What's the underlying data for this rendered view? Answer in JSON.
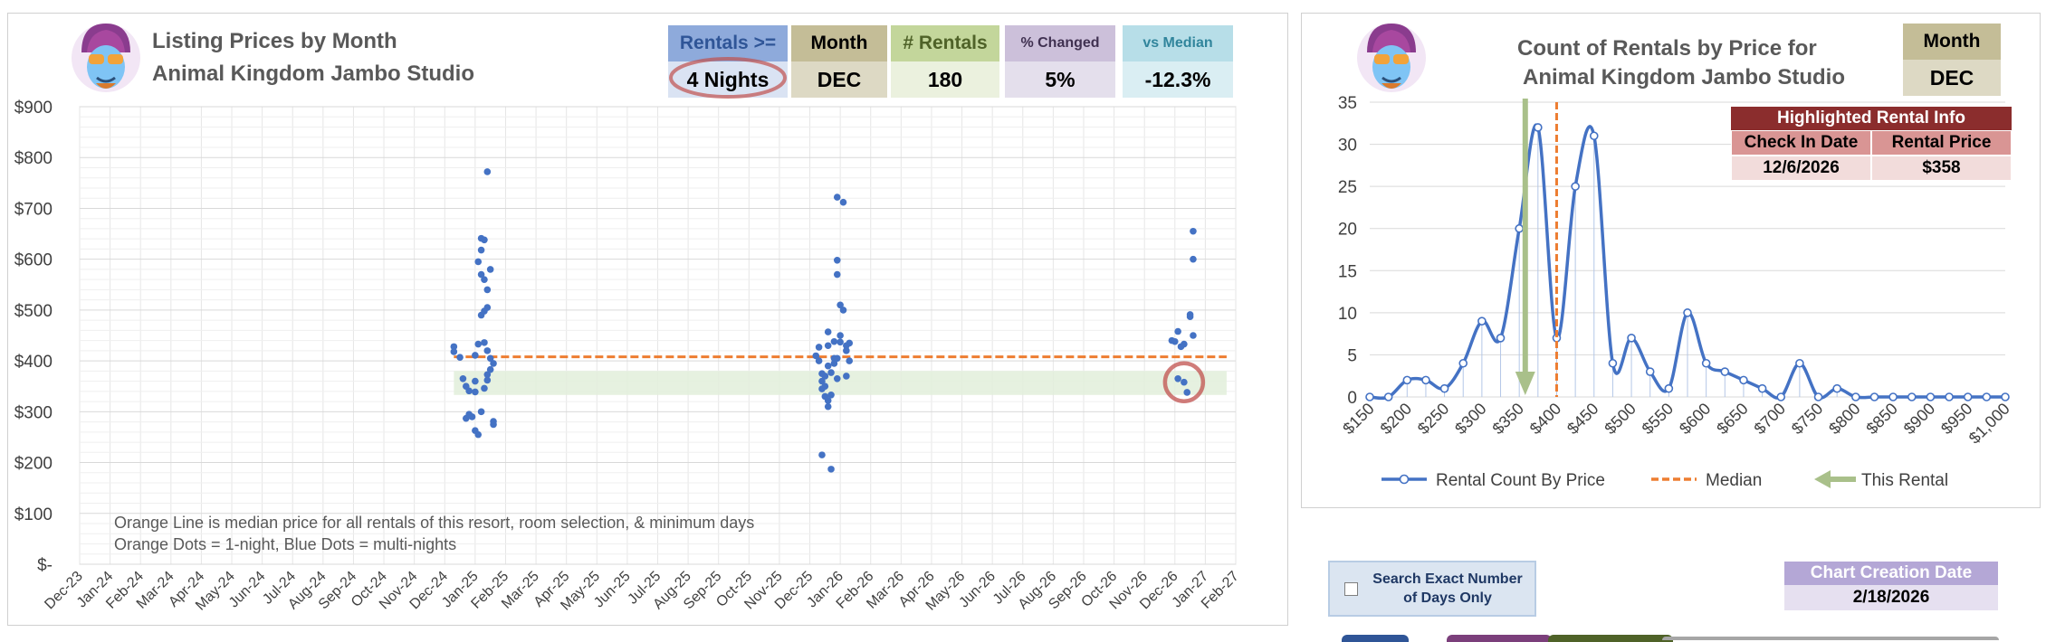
{
  "left": {
    "title_line1": "Listing Prices by Month",
    "title_line2": "Animal Kingdom Jambo Studio",
    "kpis": [
      {
        "label": "Rentals >=",
        "value": "4 Nights",
        "label_bg": "#8eaadb",
        "value_bg": "#dae3f3",
        "label_color": "#2f5597"
      },
      {
        "label": "Month",
        "value": "DEC",
        "label_bg": "#c4bd97",
        "value_bg": "#ddd9c4",
        "label_color": "#000000"
      },
      {
        "label": "# Rentals",
        "value": "180",
        "label_bg": "#c3d69b",
        "value_bg": "#ebf1de",
        "label_color": "#4f6228"
      },
      {
        "label": "% Changed",
        "value": "5%",
        "label_bg": "#ccc0da",
        "value_bg": "#e4dfec",
        "label_color": "#403151"
      },
      {
        "label": "vs Median",
        "value": "-12.3%",
        "label_bg": "#b7dee8",
        "value_bg": "#daeef3",
        "label_color": "#31859c"
      }
    ],
    "notes": [
      "Orange Line is median price for all rentals of this resort, room selection, & minimum days",
      "Orange Dots = 1-night, Blue Dots = multi-nights"
    ]
  },
  "right": {
    "title_line1": "Count of Rentals by Price for",
    "title_line2": "Animal Kingdom Jambo Studio",
    "month_label": "Month",
    "month_value": "DEC",
    "highlight": {
      "header": "Highlighted Rental Info",
      "col1": "Check In Date",
      "col2": "Rental Price",
      "checkin": "12/6/2026",
      "price": "$358"
    },
    "legend": {
      "series": "Rental Count By Price",
      "median": "Median",
      "this_rental": "This Rental"
    }
  },
  "controls": {
    "exact_days_label_1": "Search Exact Number",
    "exact_days_label_2": "of Days Only",
    "chart_date_label": "Chart Creation Date",
    "chart_date_value": "2/18/2026"
  },
  "colors": {
    "blue": "#4472c4",
    "orange": "#ed7d31",
    "band": "#e2efda",
    "green_arrow": "#a9c08a",
    "circle": "#c0504d"
  },
  "chart_data": [
    {
      "type": "scatter",
      "title": "Listing Prices by Month",
      "ylim": [
        0,
        900
      ],
      "y_ticks": [
        0,
        100,
        200,
        300,
        400,
        500,
        600,
        700,
        800,
        900
      ],
      "y_tick_labels": [
        "$-",
        "$100",
        "$200",
        "$300",
        "$400",
        "$500",
        "$600",
        "$700",
        "$800",
        "$900"
      ],
      "x_tick_labels": [
        "Dec-23",
        "Jan-24",
        "Feb-24",
        "Mar-24",
        "Apr-24",
        "May-24",
        "Jun-24",
        "Jul-24",
        "Aug-24",
        "Sep-24",
        "Oct-24",
        "Nov-24",
        "Dec-24",
        "Jan-25",
        "Feb-25",
        "Mar-25",
        "Apr-25",
        "May-25",
        "Jun-25",
        "Jul-25",
        "Aug-25",
        "Sep-25",
        "Oct-25",
        "Nov-25",
        "Dec-25",
        "Jan-26",
        "Feb-26",
        "Mar-26",
        "Apr-26",
        "May-26",
        "Jun-26",
        "Jul-26",
        "Aug-26",
        "Sep-26",
        "Oct-26",
        "Nov-26",
        "Dec-26",
        "Jan-27",
        "Feb-27"
      ],
      "median": 408,
      "median_x_range": [
        12.3,
        37.7
      ],
      "band": [
        333,
        380
      ],
      "band_x_range": [
        12.3,
        37.7
      ],
      "highlight_point": {
        "x": 36.3,
        "y": 358
      },
      "points": [
        {
          "x": 12.3,
          "y": 428
        },
        {
          "x": 12.3,
          "y": 418
        },
        {
          "x": 12.5,
          "y": 407
        },
        {
          "x": 12.6,
          "y": 365
        },
        {
          "x": 12.7,
          "y": 350
        },
        {
          "x": 12.7,
          "y": 287
        },
        {
          "x": 12.8,
          "y": 295
        },
        {
          "x": 12.8,
          "y": 341
        },
        {
          "x": 12.9,
          "y": 290
        },
        {
          "x": 13.0,
          "y": 263
        },
        {
          "x": 13.0,
          "y": 339
        },
        {
          "x": 13.0,
          "y": 360
        },
        {
          "x": 13.0,
          "y": 411
        },
        {
          "x": 13.1,
          "y": 433
        },
        {
          "x": 13.1,
          "y": 255
        },
        {
          "x": 13.1,
          "y": 595
        },
        {
          "x": 13.2,
          "y": 618
        },
        {
          "x": 13.2,
          "y": 641
        },
        {
          "x": 13.3,
          "y": 638
        },
        {
          "x": 13.2,
          "y": 570
        },
        {
          "x": 13.3,
          "y": 560
        },
        {
          "x": 13.2,
          "y": 490
        },
        {
          "x": 13.3,
          "y": 498
        },
        {
          "x": 13.4,
          "y": 505
        },
        {
          "x": 13.3,
          "y": 436
        },
        {
          "x": 13.4,
          "y": 420
        },
        {
          "x": 13.5,
          "y": 405
        },
        {
          "x": 13.4,
          "y": 373
        },
        {
          "x": 13.5,
          "y": 383
        },
        {
          "x": 13.4,
          "y": 362
        },
        {
          "x": 13.3,
          "y": 346
        },
        {
          "x": 13.2,
          "y": 300
        },
        {
          "x": 13.6,
          "y": 281
        },
        {
          "x": 13.6,
          "y": 275
        },
        {
          "x": 13.4,
          "y": 772
        },
        {
          "x": 13.5,
          "y": 580
        },
        {
          "x": 13.4,
          "y": 540
        },
        {
          "x": 13.6,
          "y": 395
        },
        {
          "x": 24.2,
          "y": 410
        },
        {
          "x": 24.3,
          "y": 427
        },
        {
          "x": 24.3,
          "y": 400
        },
        {
          "x": 24.4,
          "y": 360
        },
        {
          "x": 24.4,
          "y": 345
        },
        {
          "x": 24.4,
          "y": 215
        },
        {
          "x": 24.5,
          "y": 370
        },
        {
          "x": 24.5,
          "y": 350
        },
        {
          "x": 24.5,
          "y": 330
        },
        {
          "x": 24.6,
          "y": 322
        },
        {
          "x": 24.6,
          "y": 310
        },
        {
          "x": 24.6,
          "y": 430
        },
        {
          "x": 24.6,
          "y": 457
        },
        {
          "x": 24.7,
          "y": 377
        },
        {
          "x": 24.7,
          "y": 333
        },
        {
          "x": 24.7,
          "y": 187
        },
        {
          "x": 24.8,
          "y": 405
        },
        {
          "x": 24.8,
          "y": 438
        },
        {
          "x": 24.8,
          "y": 395
        },
        {
          "x": 24.9,
          "y": 365
        },
        {
          "x": 24.9,
          "y": 405
        },
        {
          "x": 24.9,
          "y": 722
        },
        {
          "x": 24.9,
          "y": 598
        },
        {
          "x": 24.9,
          "y": 570
        },
        {
          "x": 25.0,
          "y": 510
        },
        {
          "x": 25.0,
          "y": 450
        },
        {
          "x": 25.0,
          "y": 437
        },
        {
          "x": 25.1,
          "y": 712
        },
        {
          "x": 25.1,
          "y": 500
        },
        {
          "x": 25.2,
          "y": 430
        },
        {
          "x": 25.2,
          "y": 420
        },
        {
          "x": 25.2,
          "y": 370
        },
        {
          "x": 25.3,
          "y": 435
        },
        {
          "x": 25.3,
          "y": 400
        },
        {
          "x": 24.6,
          "y": 390
        },
        {
          "x": 24.4,
          "y": 375
        },
        {
          "x": 35.9,
          "y": 440
        },
        {
          "x": 36.0,
          "y": 438
        },
        {
          "x": 36.1,
          "y": 458
        },
        {
          "x": 36.1,
          "y": 365
        },
        {
          "x": 36.2,
          "y": 428
        },
        {
          "x": 36.3,
          "y": 433
        },
        {
          "x": 36.3,
          "y": 358
        },
        {
          "x": 36.4,
          "y": 338
        },
        {
          "x": 36.5,
          "y": 487
        },
        {
          "x": 36.5,
          "y": 491
        },
        {
          "x": 36.6,
          "y": 655
        },
        {
          "x": 36.6,
          "y": 600
        },
        {
          "x": 36.6,
          "y": 450
        }
      ]
    },
    {
      "type": "line",
      "title": "Count of Rentals by Price for Animal Kingdom Jambo Studio",
      "ylim": [
        0,
        35
      ],
      "y_ticks": [
        0,
        5,
        10,
        15,
        20,
        25,
        30,
        35
      ],
      "x_tick_labels": [
        "$150",
        "$200",
        "$250",
        "$300",
        "$350",
        "$400",
        "$450",
        "$500",
        "$550",
        "$600",
        "$650",
        "$700",
        "$750",
        "$800",
        "$850",
        "$900",
        "$950",
        "$1,000"
      ],
      "x": [
        150,
        175,
        200,
        225,
        250,
        275,
        300,
        325,
        350,
        375,
        400,
        425,
        450,
        475,
        500,
        525,
        550,
        575,
        600,
        625,
        650,
        675,
        700,
        725,
        750,
        775,
        800,
        825,
        850,
        875,
        900,
        925,
        950,
        975,
        1000
      ],
      "values": [
        0,
        0,
        2,
        2,
        1,
        4,
        9,
        7,
        20,
        32,
        7,
        25,
        31,
        4,
        7,
        3,
        1,
        10,
        4,
        3,
        2,
        1,
        0,
        4,
        0,
        1,
        0,
        0,
        0,
        0,
        0,
        0,
        0,
        0,
        0
      ],
      "median": 400,
      "this_rental": 358
    }
  ]
}
